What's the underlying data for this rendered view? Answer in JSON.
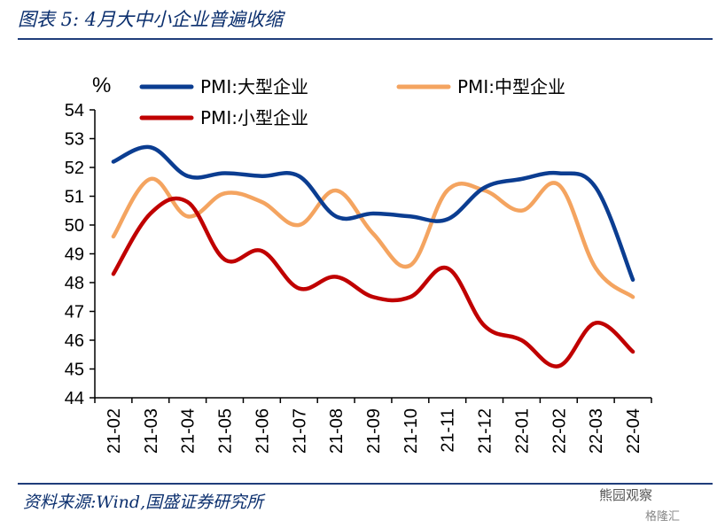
{
  "header": {
    "title": "图表 5:  4月大中小企业普遍收缩"
  },
  "footer": {
    "source": "资料来源:Wind,国盛证券研究所"
  },
  "watermark": {
    "text": "熊园观察",
    "subtext": "格隆汇"
  },
  "chart_data": {
    "type": "line",
    "unit_label": "%",
    "categories": [
      "21-02",
      "21-03",
      "21-04",
      "21-05",
      "21-06",
      "21-07",
      "21-08",
      "21-09",
      "21-10",
      "21-11",
      "21-12",
      "22-01",
      "22-02",
      "22-03",
      "22-04"
    ],
    "ylim": [
      44,
      54
    ],
    "yticks": [
      44,
      45,
      46,
      47,
      48,
      49,
      50,
      51,
      52,
      53,
      54
    ],
    "grid": false,
    "legend_position": "top",
    "series": [
      {
        "name": "PMI:大型企业",
        "color": "#0b3d91",
        "values": [
          52.2,
          52.7,
          51.7,
          51.8,
          51.7,
          51.7,
          50.3,
          50.4,
          50.3,
          50.2,
          51.3,
          51.6,
          51.8,
          51.3,
          48.1
        ]
      },
      {
        "name": "PMI:中型企业",
        "color": "#f4a460",
        "values": [
          49.6,
          51.6,
          50.3,
          51.1,
          50.8,
          50.0,
          51.2,
          49.7,
          48.6,
          51.2,
          51.2,
          50.5,
          51.4,
          48.5,
          47.5
        ]
      },
      {
        "name": "PMI:小型企业",
        "color": "#c00000",
        "values": [
          48.3,
          50.4,
          50.8,
          48.8,
          49.1,
          47.8,
          48.2,
          47.5,
          47.5,
          48.5,
          46.5,
          46.0,
          45.1,
          46.6,
          45.6
        ]
      }
    ]
  }
}
